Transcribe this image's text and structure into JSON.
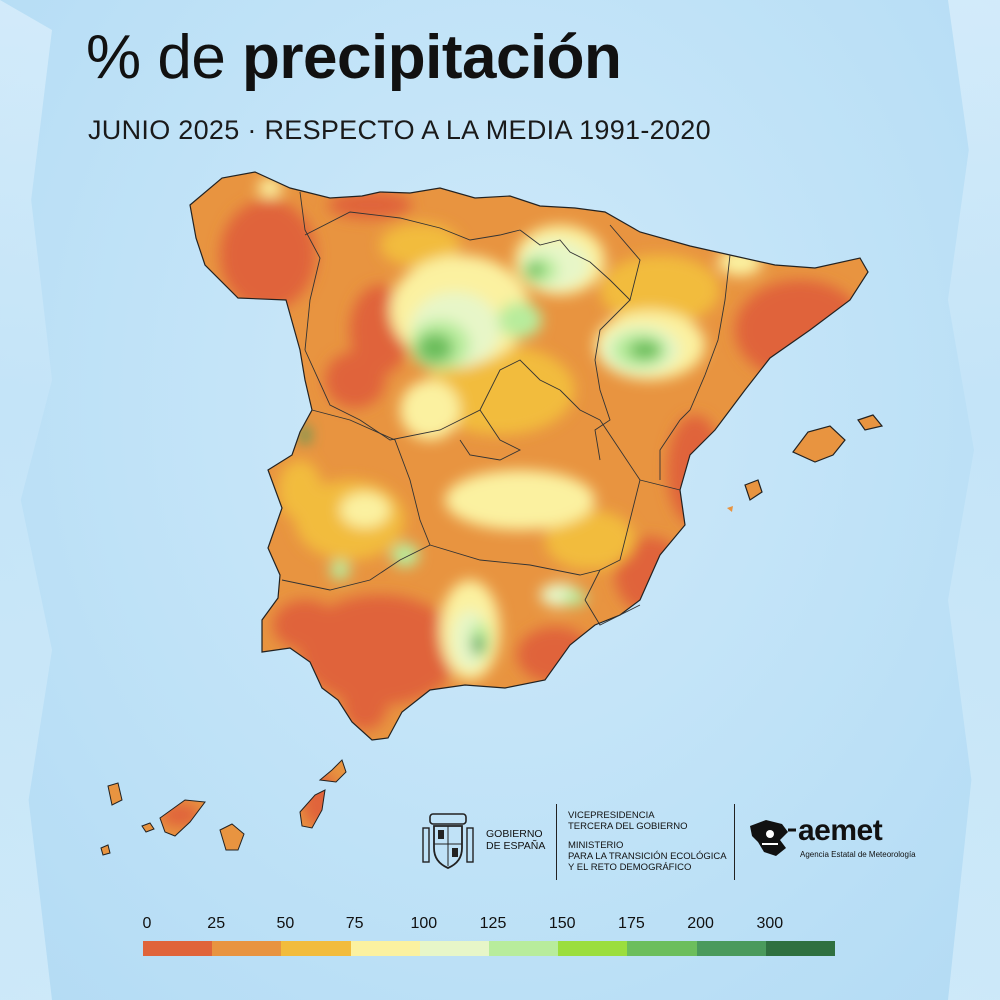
{
  "title_prefix": "% de ",
  "title_word": "precipitación",
  "subtitle": "JUNIO 2025 · RESPECTO A LA MEDIA 1991-2020",
  "legend": {
    "labels": [
      "0",
      "25",
      "50",
      "75",
      "100",
      "125",
      "150",
      "175",
      "200",
      "300"
    ],
    "colors": [
      "#e0643a",
      "#e89440",
      "#f2bc3c",
      "#fbf1a0",
      "#e7f6c8",
      "#b8ec9c",
      "#9bde3e",
      "#6cbe5c",
      "#4a9a5c",
      "#2f7040"
    ]
  },
  "logos": {
    "gobierno_line1": "GOBIERNO",
    "gobierno_line2": "DE ESPAÑA",
    "vice_line1": "VICEPRESIDENCIA",
    "vice_line2": "TERCERA DEL GOBIERNO",
    "ministerio_line1": "MINISTERIO",
    "ministerio_line2": "PARA LA TRANSICIÓN ECOLÓGICA",
    "ministerio_line3": "Y EL RETO DEMOGRÁFICO",
    "aemet": "aemet",
    "aemet_sub": "Agencia Estatal de Meteorología"
  }
}
